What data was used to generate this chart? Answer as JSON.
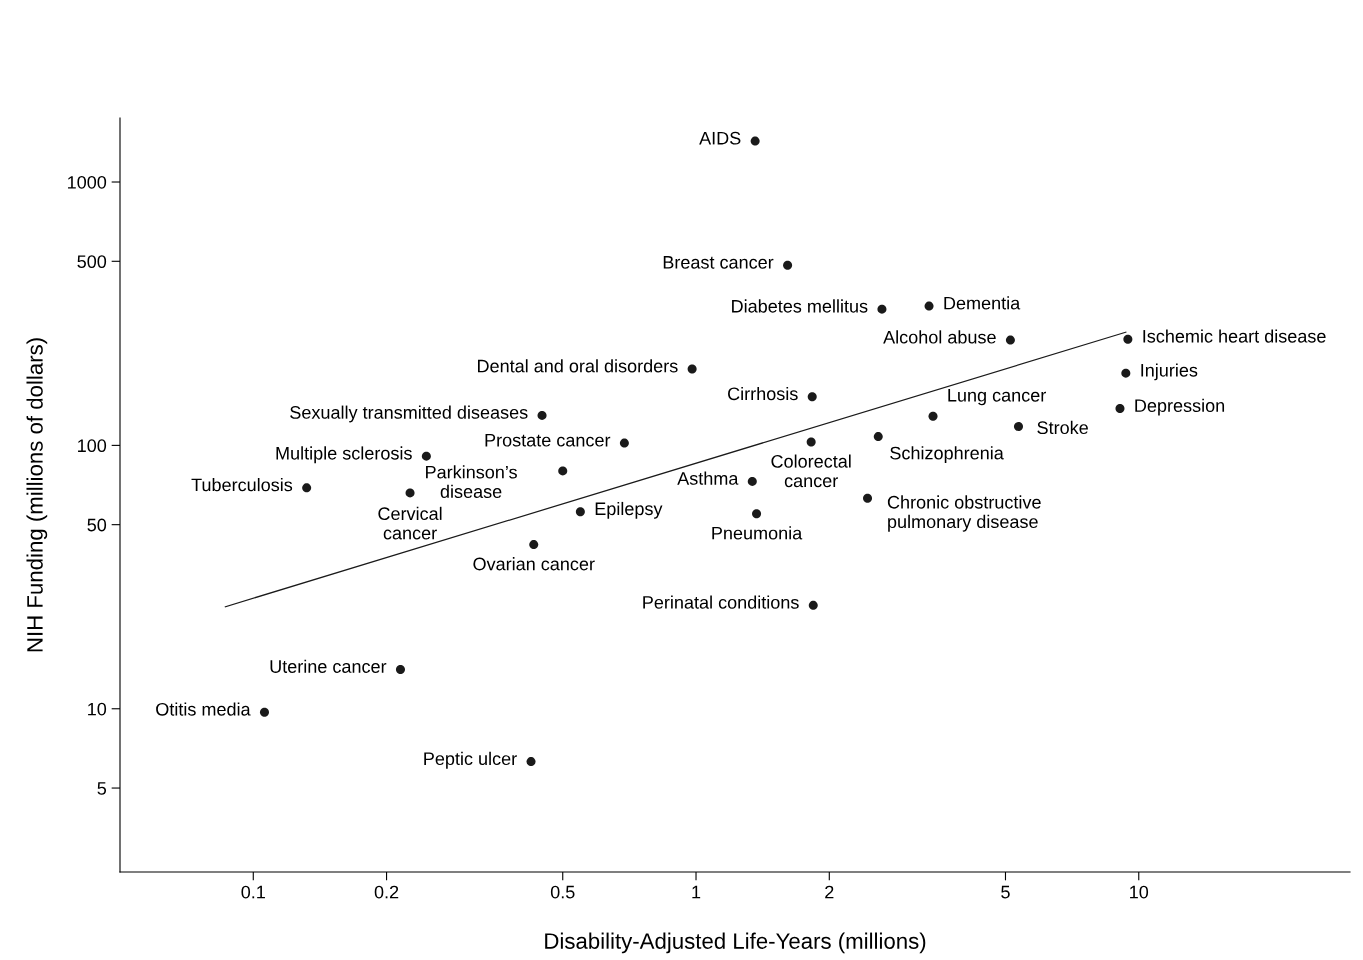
{
  "chart_data": {
    "type": "scatter",
    "xlabel": "Disability-Adjusted Life-Years (millions)",
    "ylabel": "NIH Funding (millions of dollars)",
    "log": "xy",
    "xlim": [
      0.05,
      30
    ],
    "ylim": [
      2.4,
      1750
    ],
    "xticks": [
      0.1,
      0.2,
      0.5,
      1,
      2,
      5,
      10
    ],
    "yticks": [
      5,
      10,
      50,
      100,
      500,
      1000
    ],
    "grid": false,
    "legend": false,
    "series": [
      {
        "marker": "circle",
        "color": "#1a1a1a",
        "x": [
          1.36,
          1.61,
          2.63,
          3.36,
          5.13,
          9.45,
          9.35,
          9.07,
          5.35,
          3.43,
          2.58,
          1.82,
          1.83,
          0.98,
          0.449,
          0.689,
          0.5,
          0.246,
          0.132,
          0.226,
          0.548,
          1.34,
          1.37,
          2.44,
          0.43,
          1.84,
          0.215,
          0.106,
          0.424
        ],
        "values": [
          1430,
          483,
          329,
          338,
          251,
          253,
          188,
          138,
          118,
          129,
          108,
          103,
          153,
          195,
          130,
          102,
          80,
          91,
          69,
          66,
          56,
          73,
          55,
          63,
          42,
          24.7,
          14.1,
          9.7,
          6.3
        ]
      },
      {
        "type": "line",
        "color": "#1a1a1a",
        "x": [
          0.0865,
          9.35
        ],
        "values": [
          24.4,
          269
        ]
      }
    ],
    "annotations": [
      {
        "text": "AIDS",
        "x": 1.36,
        "y": 1430
      },
      {
        "text": "Breast cancer",
        "x": 1.61,
        "y": 483
      },
      {
        "text": "Diabetes mellitus",
        "x": 2.63,
        "y": 329
      },
      {
        "text": "Dementia",
        "x": 3.36,
        "y": 338
      },
      {
        "text": "Alcohol abuse",
        "x": 5.13,
        "y": 251
      },
      {
        "text": "Ischemic heart disease",
        "x": 9.45,
        "y": 253
      },
      {
        "text": "Injuries",
        "x": 9.35,
        "y": 188
      },
      {
        "text": "Depression",
        "x": 9.07,
        "y": 138
      },
      {
        "text": "Stroke",
        "x": 5.35,
        "y": 118
      },
      {
        "text": "Lung cancer",
        "x": 3.43,
        "y": 129
      },
      {
        "text": "Schizophrenia",
        "x": 2.58,
        "y": 108
      },
      {
        "text": "Colorectal\ncancer",
        "x": 1.82,
        "y": 103
      },
      {
        "text": "Cirrhosis",
        "x": 1.83,
        "y": 153
      },
      {
        "text": "Dental and oral disorders",
        "x": 0.98,
        "y": 195
      },
      {
        "text": "Sexually transmitted diseases",
        "x": 0.449,
        "y": 130
      },
      {
        "text": "Prostate cancer",
        "x": 0.689,
        "y": 102
      },
      {
        "text": "Parkinson’s\ndisease",
        "x": 0.5,
        "y": 80
      },
      {
        "text": "Multiple sclerosis",
        "x": 0.246,
        "y": 91
      },
      {
        "text": "Tuberculosis",
        "x": 0.132,
        "y": 69
      },
      {
        "text": "Cervical\ncancer",
        "x": 0.226,
        "y": 66
      },
      {
        "text": "Epilepsy",
        "x": 0.548,
        "y": 56
      },
      {
        "text": "Asthma",
        "x": 1.34,
        "y": 73
      },
      {
        "text": "Pneumonia",
        "x": 1.37,
        "y": 55
      },
      {
        "text": "Chronic obstructive\npulmonary disease",
        "x": 2.44,
        "y": 63
      },
      {
        "text": "Ovarian cancer",
        "x": 0.43,
        "y": 42
      },
      {
        "text": "Perinatal conditions",
        "x": 1.84,
        "y": 24.7
      },
      {
        "text": "Uterine cancer",
        "x": 0.215,
        "y": 14.1
      },
      {
        "text": "Otitis media",
        "x": 0.106,
        "y": 9.7
      },
      {
        "text": "Peptic ulcer",
        "x": 0.424,
        "y": 6.3
      }
    ]
  }
}
